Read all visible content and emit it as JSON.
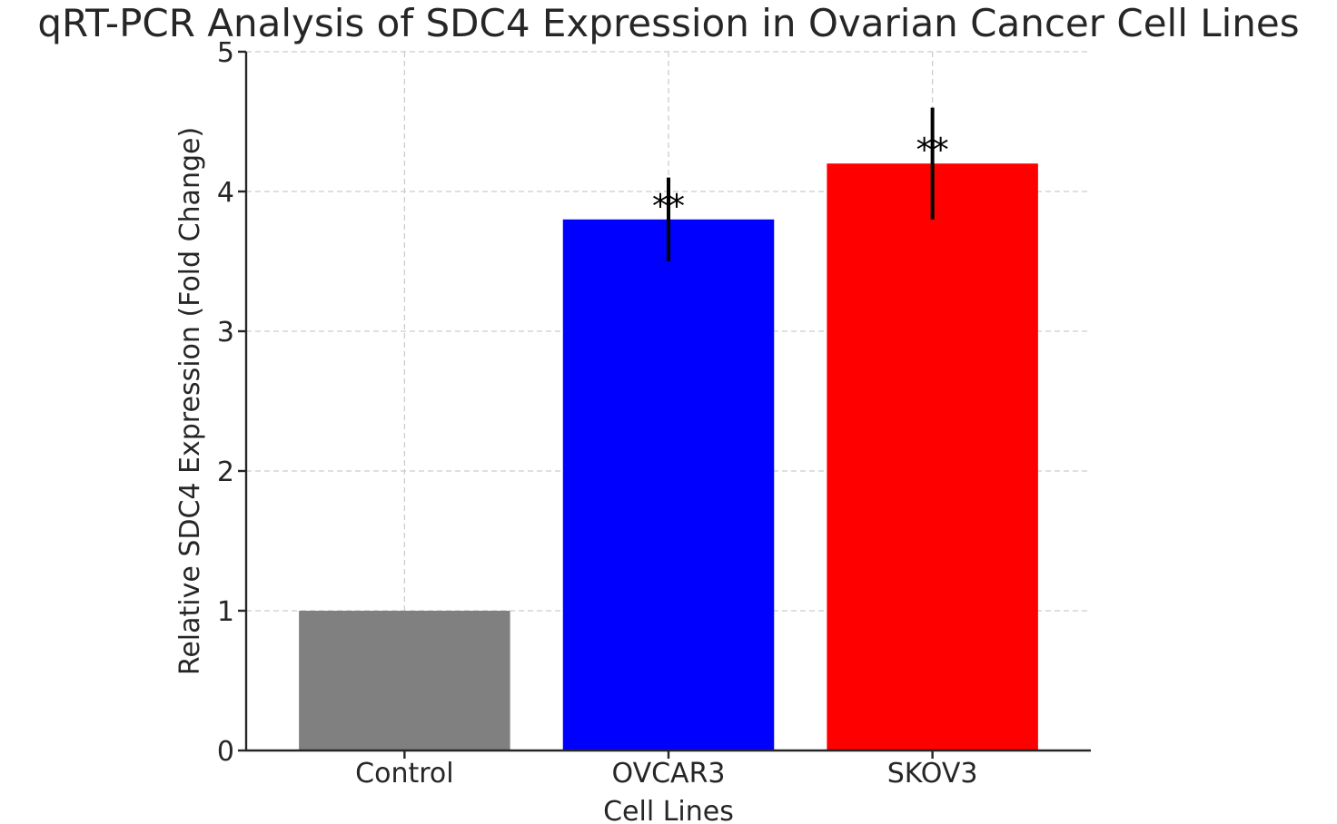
{
  "chart_data": {
    "type": "bar",
    "title": "qRT-PCR Analysis of SDC4 Expression in Ovarian Cancer Cell Lines",
    "xlabel": "Cell Lines",
    "ylabel": "Relative SDC4 Expression (Fold Change)",
    "categories": [
      "Control",
      "OVCAR3",
      "SKOV3"
    ],
    "values": [
      1.0,
      3.8,
      4.2
    ],
    "errors": [
      0.0,
      0.3,
      0.4
    ],
    "colors": [
      "#808080",
      "#0000ff",
      "#ff0000"
    ],
    "annotations": [
      "",
      "**",
      "**"
    ],
    "ylim": [
      0,
      5
    ],
    "yticks": [
      0,
      1,
      2,
      3,
      4,
      5
    ],
    "grid": true
  }
}
